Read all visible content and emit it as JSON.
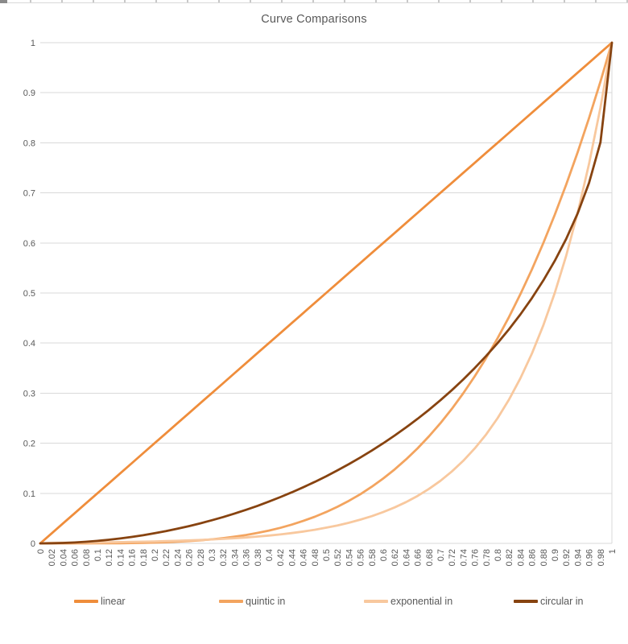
{
  "chart_data": {
    "type": "line",
    "title": "Curve Comparisons",
    "xlabel": "",
    "ylabel": "",
    "ylim": [
      0,
      1
    ],
    "grid": "horizontal",
    "legend_position": "bottom",
    "gridline_color": "#d9d9d9",
    "axis_text_color": "#595959",
    "y_tick_labels": [
      "0",
      "0.1",
      "0.2",
      "0.3",
      "0.4",
      "0.5",
      "0.6",
      "0.7",
      "0.8",
      "0.9",
      "1"
    ],
    "x": [
      0,
      0.02,
      0.04,
      0.06,
      0.08,
      0.1,
      0.12,
      0.14,
      0.16,
      0.18,
      0.2,
      0.22,
      0.24,
      0.26,
      0.28,
      0.3,
      0.32,
      0.34,
      0.36,
      0.38,
      0.4,
      0.42,
      0.44,
      0.46,
      0.48,
      0.5,
      0.52,
      0.54,
      0.56,
      0.58,
      0.6,
      0.62,
      0.64,
      0.66,
      0.68,
      0.7,
      0.72,
      0.74,
      0.76,
      0.78,
      0.8,
      0.82,
      0.84,
      0.86,
      0.88,
      0.9,
      0.92,
      0.94,
      0.96,
      0.98,
      1
    ],
    "x_tick_labels": [
      "0",
      "0.02",
      "0.04",
      "0.06",
      "0.08",
      "0.1",
      "0.12",
      "0.14",
      "0.16",
      "0.18",
      "0.2",
      "0.22",
      "0.24",
      "0.26",
      "0.28",
      "0.3",
      "0.32",
      "0.34",
      "0.36",
      "0.38",
      "0.4",
      "0.42",
      "0.44",
      "0.46",
      "0.48",
      "0.5",
      "0.52",
      "0.54",
      "0.56",
      "0.58",
      "0.6",
      "0.62",
      "0.64",
      "0.66",
      "0.68",
      "0.7",
      "0.72",
      "0.74",
      "0.76",
      "0.78",
      "0.8",
      "0.82",
      "0.84",
      "0.86",
      "0.88",
      "0.9",
      "0.92",
      "0.94",
      "0.96",
      "0.98",
      "1"
    ],
    "series": [
      {
        "name": "linear",
        "color": "#EF8D3B",
        "values": [
          0,
          0.02,
          0.04,
          0.06,
          0.08,
          0.1,
          0.12,
          0.14,
          0.16,
          0.18,
          0.2,
          0.22,
          0.24,
          0.26,
          0.28,
          0.3,
          0.32,
          0.34,
          0.36,
          0.38,
          0.4,
          0.42,
          0.44,
          0.46,
          0.48,
          0.5,
          0.52,
          0.54,
          0.56,
          0.58,
          0.6,
          0.62,
          0.64,
          0.66,
          0.68,
          0.7,
          0.72,
          0.74,
          0.76,
          0.78,
          0.8,
          0.82,
          0.84,
          0.86,
          0.88,
          0.9,
          0.92,
          0.94,
          0.96,
          0.98,
          1
        ]
      },
      {
        "name": "quintic in",
        "color": "#F3A45F",
        "values": [
          0,
          0,
          0,
          0,
          0,
          0.0001,
          0.0002,
          0.0004,
          0.0007,
          0.001,
          0.0016,
          0.0023,
          0.0033,
          0.0046,
          0.0061,
          0.0081,
          0.0105,
          0.0134,
          0.0168,
          0.0209,
          0.0256,
          0.0311,
          0.0375,
          0.0448,
          0.0531,
          0.0625,
          0.0731,
          0.085,
          0.0983,
          0.1132,
          0.1296,
          0.1478,
          0.1678,
          0.1897,
          0.2138,
          0.2401,
          0.2687,
          0.2999,
          0.3336,
          0.3702,
          0.4096,
          0.4521,
          0.4979,
          0.547,
          0.5997,
          0.6561,
          0.7164,
          0.7807,
          0.8493,
          0.9224,
          1
        ]
      },
      {
        "name": "exponential in",
        "color": "#F8C89E",
        "values": [
          0,
          0.0011,
          0.0013,
          0.0015,
          0.0017,
          0.002,
          0.0022,
          0.0026,
          0.003,
          0.0034,
          0.0039,
          0.0045,
          0.0052,
          0.0059,
          0.0068,
          0.0078,
          0.009,
          0.0103,
          0.0118,
          0.0136,
          0.0156,
          0.0179,
          0.0206,
          0.0237,
          0.0272,
          0.0313,
          0.0359,
          0.0412,
          0.0474,
          0.0544,
          0.0625,
          0.0718,
          0.0825,
          0.0947,
          0.1088,
          0.125,
          0.1436,
          0.1649,
          0.1895,
          0.2176,
          0.25,
          0.2872,
          0.3299,
          0.3789,
          0.4353,
          0.5,
          0.5743,
          0.6598,
          0.7579,
          0.8706,
          1
        ]
      },
      {
        "name": "circular in",
        "color": "#874310",
        "values": [
          0,
          0.0002,
          0.0008,
          0.0018,
          0.0032,
          0.005,
          0.0072,
          0.0098,
          0.0129,
          0.0163,
          0.0202,
          0.0245,
          0.0292,
          0.0344,
          0.04,
          0.0461,
          0.0526,
          0.0596,
          0.067,
          0.075,
          0.0835,
          0.0925,
          0.102,
          0.1121,
          0.1227,
          0.134,
          0.1458,
          0.1583,
          0.1715,
          0.1854,
          0.2,
          0.2154,
          0.2316,
          0.2487,
          0.2668,
          0.2859,
          0.306,
          0.3274,
          0.3501,
          0.3742,
          0.4,
          0.4276,
          0.4574,
          0.4897,
          0.525,
          0.5641,
          0.6081,
          0.6588,
          0.72,
          0.801,
          1
        ]
      }
    ]
  }
}
